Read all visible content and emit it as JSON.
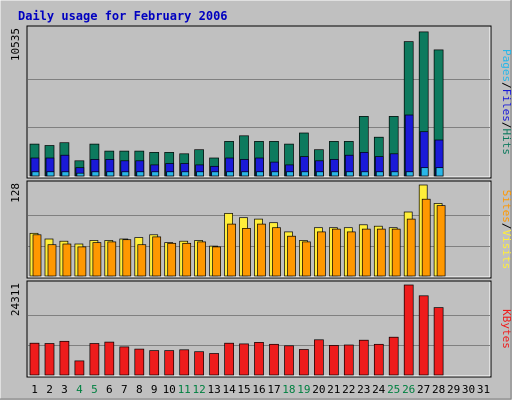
{
  "chart_data": {
    "type": "bar",
    "title": "Daily usage for February 2006",
    "categories": [
      "1",
      "2",
      "3",
      "4",
      "5",
      "6",
      "7",
      "8",
      "9",
      "10",
      "11",
      "12",
      "13",
      "14",
      "15",
      "16",
      "17",
      "18",
      "19",
      "20",
      "21",
      "22",
      "23",
      "24",
      "25",
      "26",
      "27",
      "28",
      "29",
      "30",
      "31"
    ],
    "weekend_days": [
      "4",
      "5",
      "11",
      "12",
      "18",
      "19",
      "25",
      "26"
    ],
    "panels": [
      {
        "id": "hits",
        "ymax_label": "10535",
        "ymax": 10535,
        "series": [
          {
            "name": "Hits",
            "color": "#0d7a5e",
            "values": [
              2300,
              2200,
              2400,
              1100,
              2300,
              1800,
              1800,
              1800,
              1700,
              1700,
              1600,
              1900,
              1300,
              2500,
              2900,
              2500,
              2500,
              2300,
              3100,
              1900,
              2500,
              2500,
              4300,
              2800,
              4300,
              9700,
              10400,
              9100,
              0,
              0,
              0
            ]
          },
          {
            "name": "Files",
            "color": "#1a1ad8",
            "values": [
              1300,
              1300,
              1500,
              600,
              1200,
              1200,
              1100,
              1100,
              800,
              900,
              900,
              800,
              700,
              1300,
              1200,
              1300,
              1000,
              800,
              1400,
              1100,
              1200,
              1500,
              1700,
              1400,
              1600,
              4400,
              3200,
              2600,
              0,
              0,
              0
            ]
          },
          {
            "name": "Pages",
            "color": "#29b6e8",
            "values": [
              300,
              300,
              300,
              200,
              300,
              300,
              300,
              300,
              300,
              300,
              300,
              300,
              300,
              300,
              300,
              300,
              300,
              300,
              300,
              300,
              300,
              300,
              300,
              300,
              300,
              300,
              600,
              600,
              0,
              0,
              0
            ]
          }
        ]
      },
      {
        "id": "visits",
        "ymax_label": "128",
        "ymax": 128,
        "series": [
          {
            "name": "Visits",
            "color": "#ffee3a",
            "values": [
              60,
              52,
              49,
              45,
              50,
              50,
              52,
              54,
              58,
              47,
              49,
              50,
              42,
              88,
              82,
              80,
              75,
              62,
              50,
              68,
              68,
              68,
              72,
              70,
              68,
              90,
              128,
              102,
              0,
              0,
              0
            ]
          },
          {
            "name": "Sites",
            "color": "#ff9800",
            "values": [
              58,
              44,
              45,
              41,
              47,
              48,
              51,
              44,
              55,
              46,
              46,
              48,
              41,
              73,
              67,
              73,
              68,
              56,
              48,
              62,
              66,
              62,
              66,
              66,
              66,
              80,
              108,
              99,
              0,
              0,
              0
            ]
          }
        ]
      },
      {
        "id": "kbytes",
        "ymax_label": "24311",
        "ymax": 24311,
        "series": [
          {
            "name": "KBytes",
            "color": "#ee1c1c",
            "values": [
              8600,
              8500,
              9100,
              3800,
              8500,
              8900,
              7600,
              7000,
              6600,
              6600,
              6800,
              6300,
              5800,
              8600,
              8400,
              8800,
              8300,
              7900,
              6900,
              9500,
              8000,
              8100,
              9400,
              8300,
              10200,
              24300,
              21400,
              18200,
              0,
              0,
              0
            ]
          }
        ]
      }
    ],
    "right_labels": [
      [
        {
          "text": "Pages",
          "color": "#29b6e8"
        },
        {
          "text": "/",
          "color": "#000000"
        },
        {
          "text": "Files",
          "color": "#1a1ad8"
        },
        {
          "text": "/",
          "color": "#000000"
        },
        {
          "text": "Hits",
          "color": "#0d7a5e"
        }
      ],
      [
        {
          "text": "Sites",
          "color": "#ff9800"
        },
        {
          "text": "/",
          "color": "#000000"
        },
        {
          "text": "Visits",
          "color": "#ffee3a"
        }
      ],
      [
        {
          "text": "KBytes",
          "color": "#ee1c1c"
        }
      ]
    ],
    "colors": {
      "frame": "#c0c0c0",
      "plot_bg": "#c0c0c0",
      "title": "#0000c0",
      "weekday_label": "#000000",
      "weekend_label": "#008040"
    }
  }
}
